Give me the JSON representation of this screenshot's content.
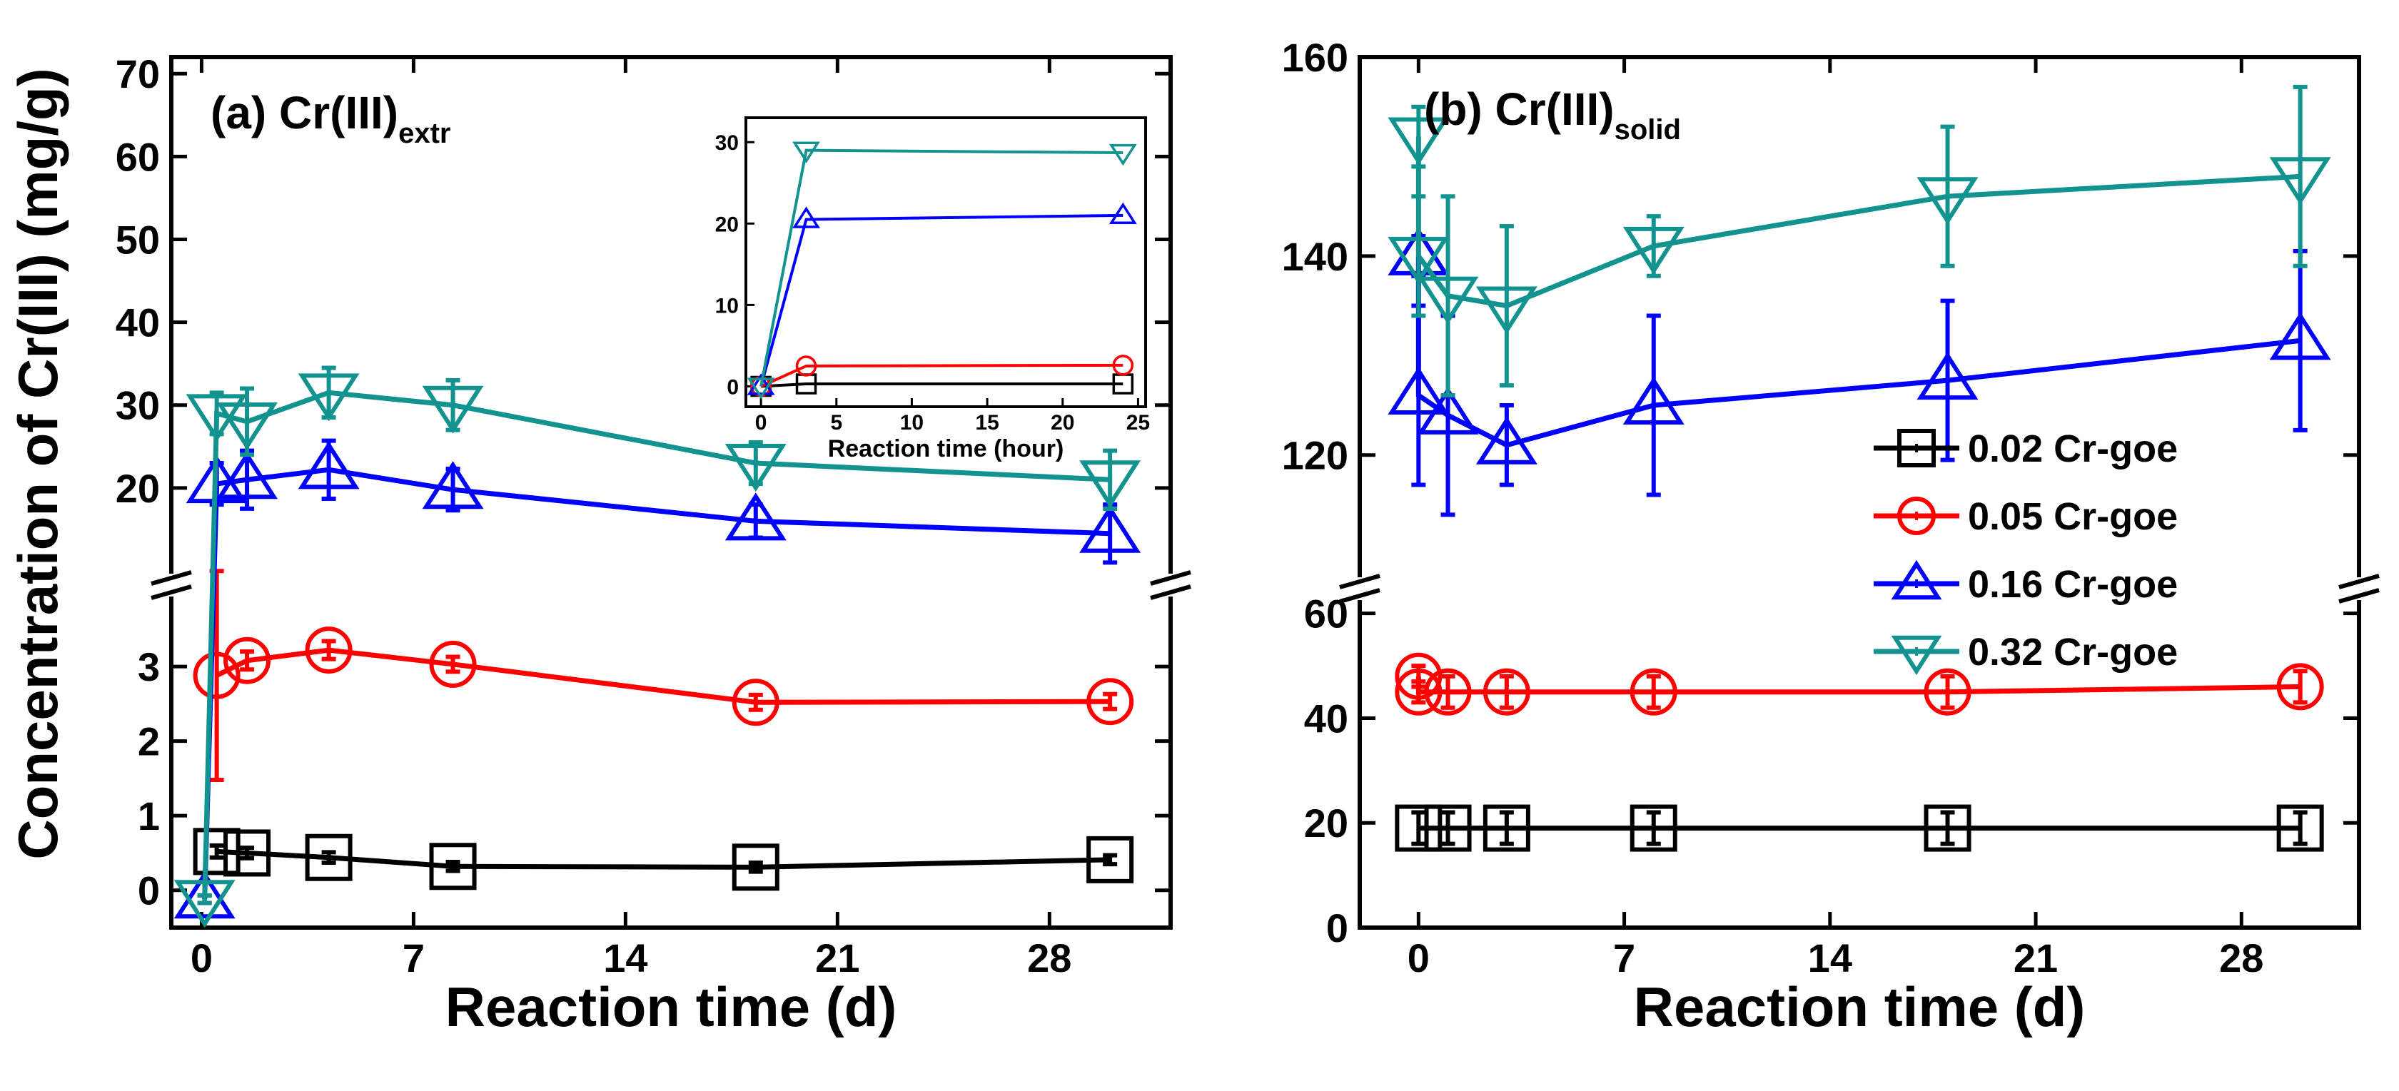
{
  "figure": {
    "y_axis_title": "Concentration of Cr(III) (mg/g)",
    "x_axis_title": "Reaction time (d)"
  },
  "chart_data": [
    {
      "panel": "a",
      "type": "line",
      "title_main": "(a) Cr(III)",
      "title_sub": "extr",
      "xlabel": "Reaction time (d)",
      "ylabel": "Concentration of Cr(III) (mg/g)",
      "xlim": [
        -1,
        32
      ],
      "xticks": [
        0,
        7,
        14,
        21,
        28
      ],
      "y_break": true,
      "y_lower_lim": [
        -0.5,
        3.9
      ],
      "y_lower_ticks": [
        0,
        1,
        2,
        3
      ],
      "y_upper_lim": [
        10,
        72
      ],
      "y_upper_ticks": [
        20,
        30,
        40,
        50,
        60,
        70
      ],
      "series": [
        {
          "name": "0.02 Cr-goe",
          "color": "#000000",
          "marker": "square",
          "x": [
            0.5,
            1.5,
            4.2,
            8.3,
            18.3,
            30.0
          ],
          "y": [
            0.52,
            0.5,
            0.44,
            0.32,
            0.31,
            0.41
          ],
          "err": [
            0.08,
            0.07,
            0.07,
            0.06,
            0.06,
            0.06
          ]
        },
        {
          "name": "0.05 Cr-goe",
          "color": "#ff0000",
          "marker": "circle",
          "x": [
            0.5,
            1.5,
            4.2,
            8.3,
            18.3,
            30.0
          ],
          "y": [
            2.88,
            3.08,
            3.22,
            3.03,
            2.52,
            2.53
          ],
          "err": [
            1.4,
            0.12,
            0.12,
            0.1,
            0.1,
            0.1
          ]
        },
        {
          "name": "0.16 Cr-goe",
          "color": "#0000ff",
          "marker": "triangle-up",
          "x": [
            0.1,
            0.5,
            1.5,
            4.2,
            8.3,
            18.3,
            30.0
          ],
          "y": [
            -0.12,
            20.5,
            21.0,
            22.2,
            19.8,
            16.0,
            14.5
          ],
          "err": [
            0.05,
            2.5,
            3.5,
            3.5,
            2.5,
            2.0,
            3.5
          ]
        },
        {
          "name": "0.32 Cr-goe",
          "color": "#13938f",
          "marker": "triangle-down",
          "x": [
            0.1,
            0.5,
            1.5,
            4.2,
            8.3,
            18.3,
            30.0
          ],
          "y": [
            -0.12,
            29.0,
            28.0,
            31.5,
            30.0,
            23.0,
            21.0
          ],
          "err": [
            0.05,
            2.5,
            4.0,
            3.0,
            3.0,
            2.5,
            3.5
          ]
        }
      ],
      "inset": {
        "type": "line",
        "xlabel": "Reaction time (hour)",
        "xlim": [
          -1,
          25.5
        ],
        "xticks": [
          0,
          5,
          10,
          15,
          20,
          25
        ],
        "ylim": [
          -2.5,
          33
        ],
        "yticks": [
          0,
          10,
          20,
          30
        ],
        "series": [
          {
            "name": "0.02 Cr-goe",
            "color": "#000000",
            "marker": "square",
            "x": [
              0,
              3,
              24
            ],
            "y": [
              0,
              0.3,
              0.3
            ]
          },
          {
            "name": "0.05 Cr-goe",
            "color": "#ff0000",
            "marker": "circle",
            "x": [
              0,
              3,
              24
            ],
            "y": [
              0,
              2.5,
              2.6
            ]
          },
          {
            "name": "0.16 Cr-goe",
            "color": "#0000ff",
            "marker": "triangle-up",
            "x": [
              0,
              3,
              24
            ],
            "y": [
              0,
              20.5,
              21.0
            ]
          },
          {
            "name": "0.32 Cr-goe",
            "color": "#13938f",
            "marker": "triangle-down",
            "x": [
              0,
              3,
              24
            ],
            "y": [
              0,
              29.0,
              28.7
            ]
          }
        ]
      }
    },
    {
      "panel": "b",
      "type": "line",
      "title_main": "(b) Cr(III)",
      "title_sub": "solid",
      "xlabel": "Reaction time (d)",
      "ylabel": "",
      "xlim": [
        -2,
        32
      ],
      "xticks": [
        0,
        7,
        14,
        21,
        28
      ],
      "y_break": true,
      "y_lower_lim": [
        0,
        62
      ],
      "y_lower_ticks": [
        0,
        20,
        40,
        60
      ],
      "y_upper_lim": [
        108,
        160
      ],
      "y_upper_ticks": [
        120,
        140,
        160
      ],
      "legend_position": "right",
      "series": [
        {
          "name": "0.02 Cr-goe",
          "color": "#000000",
          "marker": "square",
          "x": [
            0,
            1,
            3,
            8,
            18,
            30
          ],
          "y": [
            19,
            19,
            19,
            19,
            19,
            19
          ],
          "err": [
            3,
            3,
            3,
            3,
            3,
            3
          ]
        },
        {
          "name": "0.05 Cr-goe",
          "color": "#ff0000",
          "marker": "circle",
          "x": [
            0,
            0,
            1,
            3,
            8,
            18,
            30
          ],
          "y": [
            48,
            45,
            45,
            45,
            45,
            45,
            46
          ],
          "err": [
            2,
            2,
            3,
            3,
            3,
            3,
            3
          ]
        },
        {
          "name": "0.16 Cr-goe",
          "color": "#0000ff",
          "marker": "triangle-up",
          "x": [
            0,
            0,
            1,
            3,
            8,
            18,
            30
          ],
          "y": [
            140,
            126,
            124,
            121,
            125,
            127.5,
            131.5
          ],
          "err": [
            2,
            9,
            10,
            4,
            9,
            8,
            9
          ]
        },
        {
          "name": "0.32 Cr-goe",
          "color": "#13938f",
          "marker": "triangle-down",
          "x": [
            0,
            0,
            1,
            3,
            8,
            18,
            30
          ],
          "y": [
            152,
            140,
            136,
            135,
            141,
            146,
            148
          ],
          "err": [
            3,
            6,
            10,
            8,
            3,
            7,
            9
          ]
        }
      ]
    }
  ]
}
